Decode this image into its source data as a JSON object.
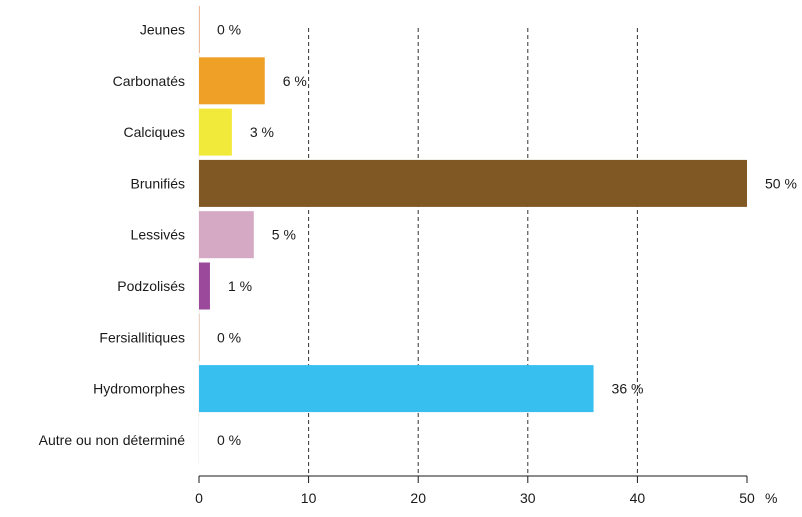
{
  "chart_data": {
    "type": "bar",
    "orientation": "horizontal",
    "title": "",
    "xlabel": "",
    "ylabel": "",
    "unit": "%",
    "xlim": [
      0,
      50
    ],
    "xticks": [
      "0",
      "10",
      "20",
      "30",
      "40",
      "50"
    ],
    "grid": "vertical-dashed",
    "categories": [
      "Jeunes",
      "Carbonatés",
      "Calciques",
      "Brunifiés",
      "Lessivés",
      "Podzolisés",
      "Fersiallitiques",
      "Hydromorphes",
      "Autre ou non déterminé"
    ],
    "values": [
      0,
      6,
      3,
      50,
      5,
      1,
      0,
      36,
      0
    ],
    "value_labels": [
      "0 %",
      "6 %",
      "3 %",
      "50 %",
      "5 %",
      "1 %",
      "0 %",
      "36 %",
      "0 %"
    ],
    "colors": [
      "#f0b99a",
      "#efa027",
      "#f1ea3a",
      "#805823",
      "#d5a8c4",
      "#9b4a9b",
      "#ead4c7",
      "#37bff0",
      "#ffffff"
    ]
  }
}
